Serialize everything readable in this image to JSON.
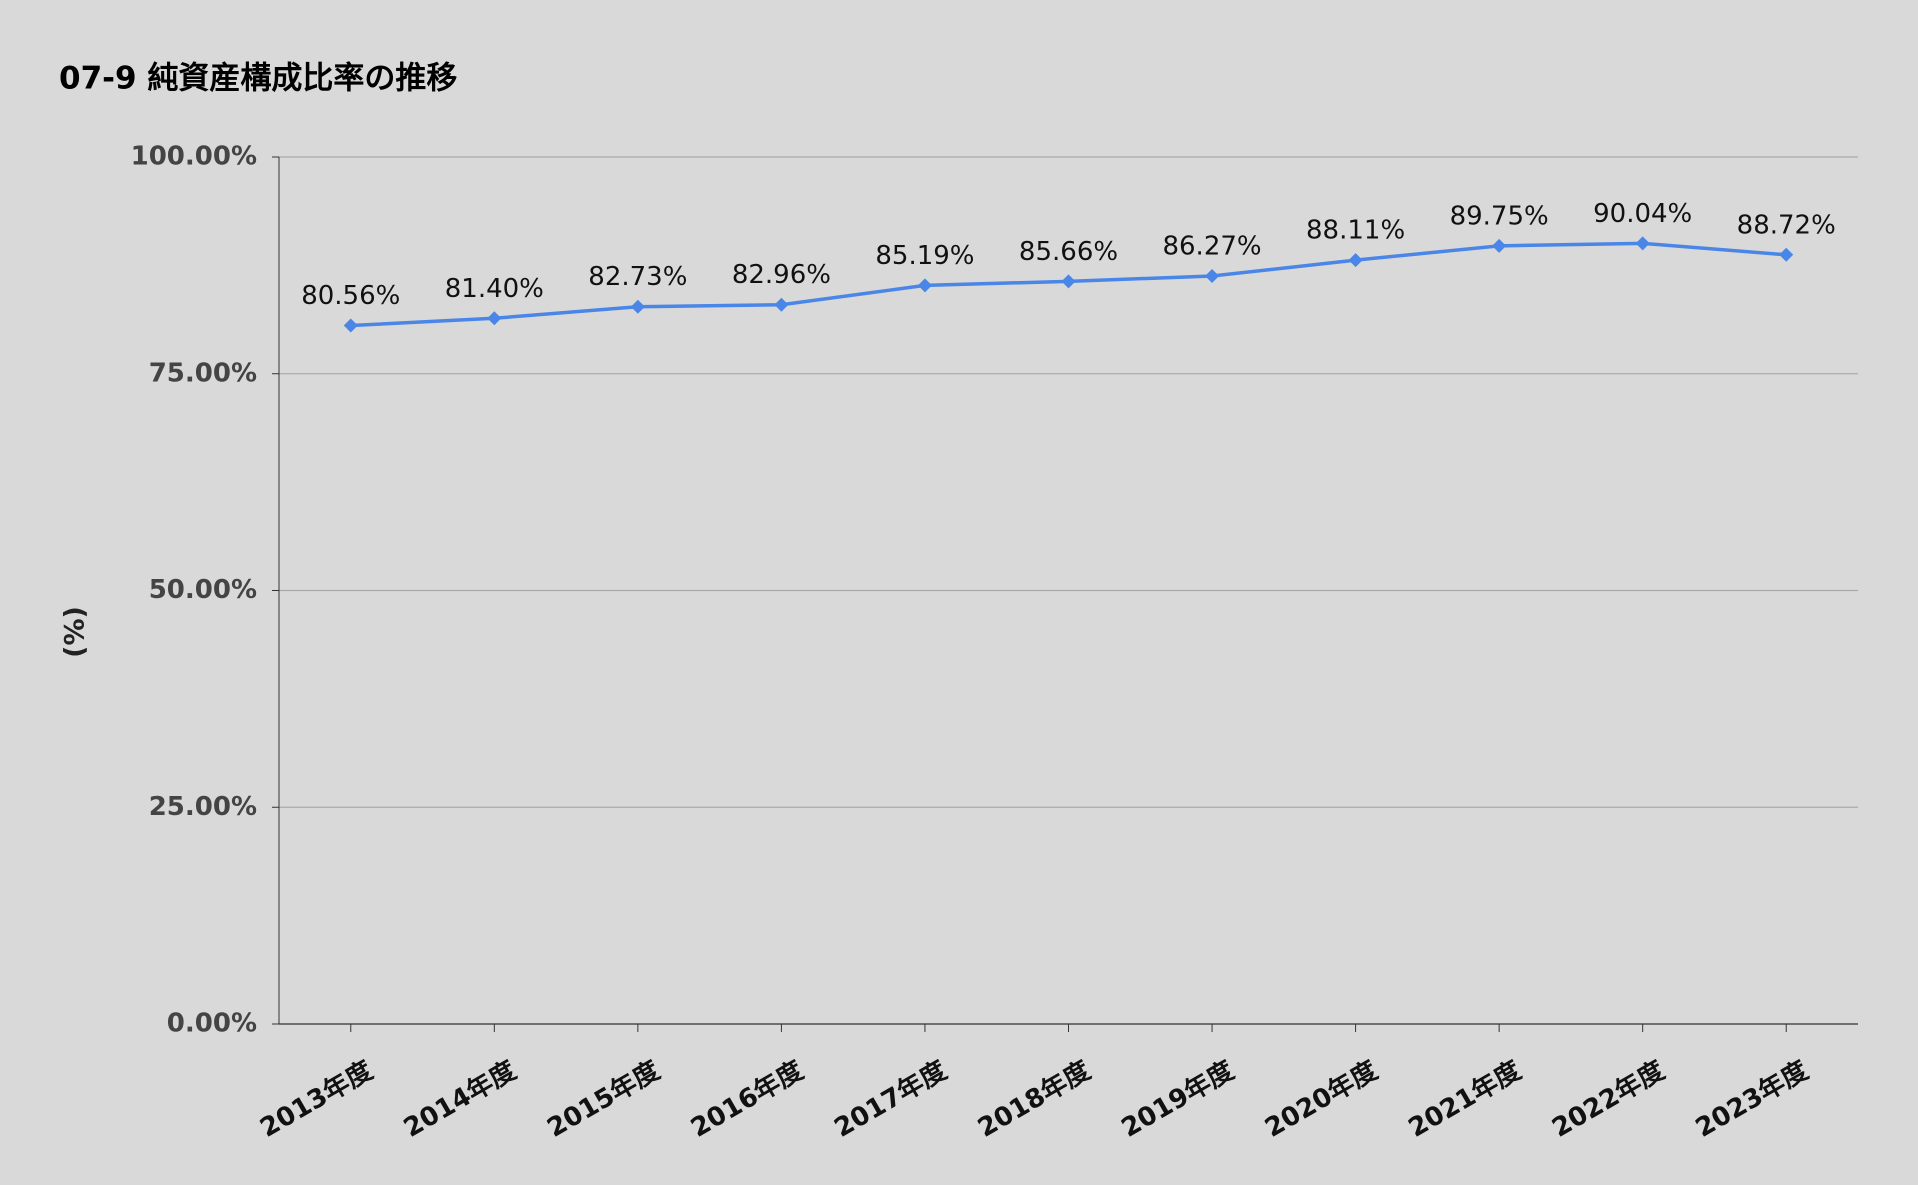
{
  "chart_data": {
    "type": "line",
    "title": "07-9 純資産構成比率の推移",
    "y_label": "(%)",
    "categories": [
      "2013年度",
      "2014年度",
      "2015年度",
      "2016年度",
      "2017年度",
      "2018年度",
      "2019年度",
      "2020年度",
      "2021年度",
      "2022年度",
      "2023年度"
    ],
    "series": [
      {
        "color": "#4a86e8",
        "values": [
          80.56,
          81.4,
          82.73,
          82.96,
          85.19,
          85.66,
          86.27,
          88.11,
          89.75,
          90.04,
          88.72
        ],
        "value_labels": [
          "80.56%",
          "81.40%",
          "82.73%",
          "82.96%",
          "85.19%",
          "85.66%",
          "86.27%",
          "88.11%",
          "89.75%",
          "90.04%",
          "88.72%"
        ]
      }
    ],
    "ylim": [
      0,
      100
    ],
    "yticks": [
      {
        "value": 0,
        "label": "0.00%"
      },
      {
        "value": 25,
        "label": "25.00%"
      },
      {
        "value": 50,
        "label": "50.00%"
      },
      {
        "value": 75,
        "label": "75.00%"
      },
      {
        "value": 100,
        "label": "100.00%"
      }
    ],
    "grid": true
  }
}
